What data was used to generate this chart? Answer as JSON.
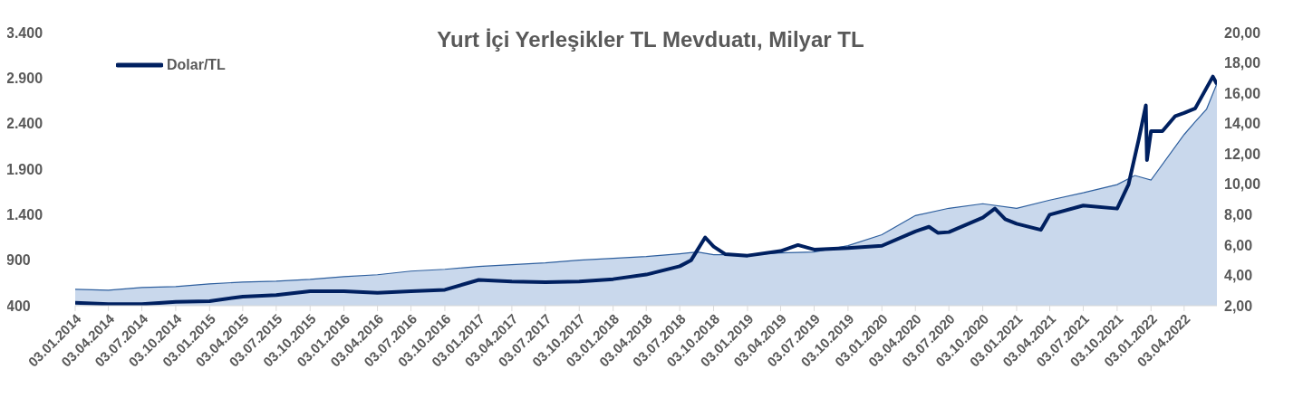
{
  "chart_data": {
    "type": "area",
    "title": "Yurt İçi Yerleşikler TL Mevduatı, Milyar TL",
    "legend": "top left",
    "grid": false,
    "xlim": [
      "2014-01-03",
      "2022-07-01"
    ],
    "xticks": [
      {
        "value": "2014-01-03",
        "label": "03.01.2014"
      },
      {
        "value": "2014-04-03",
        "label": "03.04.2014"
      },
      {
        "value": "2014-07-03",
        "label": "03.07.2014"
      },
      {
        "value": "2014-10-03",
        "label": "03.10.2014"
      },
      {
        "value": "2015-01-03",
        "label": "03.01.2015"
      },
      {
        "value": "2015-04-03",
        "label": "03.04.2015"
      },
      {
        "value": "2015-07-03",
        "label": "03.07.2015"
      },
      {
        "value": "2015-10-03",
        "label": "03.10.2015"
      },
      {
        "value": "2016-01-03",
        "label": "03.01.2016"
      },
      {
        "value": "2016-04-03",
        "label": "03.04.2016"
      },
      {
        "value": "2016-07-03",
        "label": "03.07.2016"
      },
      {
        "value": "2016-10-03",
        "label": "03.10.2016"
      },
      {
        "value": "2017-01-03",
        "label": "03.01.2017"
      },
      {
        "value": "2017-04-03",
        "label": "03.04.2017"
      },
      {
        "value": "2017-07-03",
        "label": "03.07.2017"
      },
      {
        "value": "2017-10-03",
        "label": "03.10.2017"
      },
      {
        "value": "2018-01-03",
        "label": "03.01.2018"
      },
      {
        "value": "2018-04-03",
        "label": "03.04.2018"
      },
      {
        "value": "2018-07-03",
        "label": "03.07.2018"
      },
      {
        "value": "2018-10-03",
        "label": "03.10.2018"
      },
      {
        "value": "2019-01-03",
        "label": "03.01.2019"
      },
      {
        "value": "2019-04-03",
        "label": "03.04.2019"
      },
      {
        "value": "2019-07-03",
        "label": "03.07.2019"
      },
      {
        "value": "2019-10-03",
        "label": "03.10.2019"
      },
      {
        "value": "2020-01-03",
        "label": "03.01.2020"
      },
      {
        "value": "2020-04-03",
        "label": "03.04.2020"
      },
      {
        "value": "2020-07-03",
        "label": "03.07.2020"
      },
      {
        "value": "2020-10-03",
        "label": "03.10.2020"
      },
      {
        "value": "2021-01-03",
        "label": "03.01.2021"
      },
      {
        "value": "2021-04-03",
        "label": "03.04.2021"
      },
      {
        "value": "2021-07-03",
        "label": "03.07.2021"
      },
      {
        "value": "2021-10-03",
        "label": "03.10.2021"
      },
      {
        "value": "2022-01-03",
        "label": "03.01.2022"
      },
      {
        "value": "2022-04-03",
        "label": "03.04.2022"
      }
    ],
    "ylim": [
      400,
      3400
    ],
    "yticks": [
      400,
      900,
      {
        "value": 1400,
        "label": "1.400"
      },
      {
        "value": 1900,
        "label": "1.900"
      },
      {
        "value": 2400,
        "label": "2.400"
      },
      {
        "value": 2900,
        "label": "2.900"
      },
      {
        "value": 3400,
        "label": "3.400"
      }
    ],
    "y2lim": [
      2,
      20
    ],
    "y2ticks": [
      {
        "value": 2,
        "label": "2,00"
      },
      {
        "value": 4,
        "label": "4,00"
      },
      {
        "value": 6,
        "label": "6,00"
      },
      {
        "value": 8,
        "label": "8,00"
      },
      {
        "value": 10,
        "label": "10,00"
      },
      {
        "value": 12,
        "label": "12,00"
      },
      {
        "value": 14,
        "label": "14,00"
      },
      {
        "value": 16,
        "label": "16,00"
      },
      {
        "value": 18,
        "label": "18,00"
      },
      {
        "value": 20,
        "label": "20,00"
      }
    ],
    "series": [
      {
        "color": "#2e5f9e",
        "x": [
          "2014-01-03",
          "2014-04-03",
          "2014-07-03",
          "2014-10-03",
          "2015-01-03",
          "2015-04-03",
          "2015-07-03",
          "2015-10-03",
          "2016-01-03",
          "2016-04-03",
          "2016-07-03",
          "2016-10-03",
          "2017-01-03",
          "2017-04-03",
          "2017-07-03",
          "2017-10-03",
          "2018-01-03",
          "2018-04-03",
          "2018-07-03",
          "2018-08-20",
          "2018-10-03",
          "2019-01-03",
          "2019-04-03",
          "2019-07-03",
          "2019-10-03",
          "2020-01-03",
          "2020-04-03",
          "2020-07-03",
          "2020-10-03",
          "2021-01-03",
          "2021-04-03",
          "2021-07-03",
          "2021-10-03",
          "2021-11-20",
          "2022-01-03",
          "2022-04-03",
          "2022-05-03",
          "2022-06-03",
          "2022-07-01"
        ],
        "values": [
          580,
          570,
          600,
          610,
          640,
          660,
          670,
          690,
          720,
          740,
          780,
          800,
          830,
          850,
          870,
          900,
          920,
          940,
          970,
          990,
          960,
          960,
          980,
          990,
          1060,
          1180,
          1390,
          1470,
          1520,
          1470,
          1560,
          1640,
          1730,
          1830,
          1780,
          2280,
          2420,
          2560,
          2840
        ]
      },
      {
        "type": "line",
        "name": "Dolar/TL",
        "color": "#002060",
        "axis": "y2",
        "x": [
          "2014-01-03",
          "2014-04-03",
          "2014-07-03",
          "2014-10-03",
          "2015-01-03",
          "2015-04-03",
          "2015-07-03",
          "2015-10-03",
          "2016-01-03",
          "2016-04-03",
          "2016-07-03",
          "2016-10-03",
          "2017-01-03",
          "2017-04-03",
          "2017-07-03",
          "2017-10-03",
          "2018-01-03",
          "2018-04-03",
          "2018-07-03",
          "2018-08-03",
          "2018-09-10",
          "2018-10-03",
          "2018-11-03",
          "2019-01-03",
          "2019-04-03",
          "2019-05-20",
          "2019-07-03",
          "2019-10-03",
          "2020-01-03",
          "2020-04-03",
          "2020-05-10",
          "2020-06-03",
          "2020-07-03",
          "2020-10-03",
          "2020-11-05",
          "2020-12-03",
          "2021-01-03",
          "2021-03-10",
          "2021-04-03",
          "2021-07-03",
          "2021-10-03",
          "2021-11-03",
          "2021-12-01",
          "2021-12-20",
          "2021-12-23",
          "2022-01-03",
          "2022-02-03",
          "2022-03-10",
          "2022-04-03",
          "2022-05-03",
          "2022-06-20",
          "2022-07-01"
        ],
        "values": [
          2.2,
          2.1,
          2.1,
          2.25,
          2.3,
          2.6,
          2.7,
          2.95,
          2.95,
          2.85,
          2.95,
          3.05,
          3.7,
          3.6,
          3.55,
          3.6,
          3.75,
          4.05,
          4.6,
          5.0,
          6.5,
          5.9,
          5.4,
          5.3,
          5.6,
          6.0,
          5.7,
          5.8,
          5.95,
          6.9,
          7.2,
          6.8,
          6.85,
          7.8,
          8.4,
          7.7,
          7.4,
          7.0,
          8.0,
          8.6,
          8.4,
          10.0,
          13.0,
          15.2,
          11.6,
          13.5,
          13.5,
          14.5,
          14.7,
          15.0,
          17.1,
          16.6
        ]
      }
    ]
  }
}
